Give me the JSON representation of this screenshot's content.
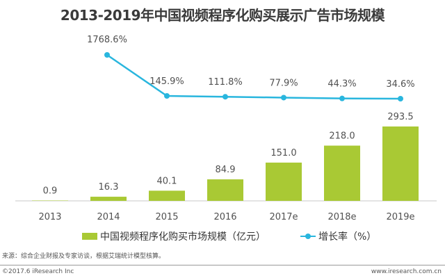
{
  "chart_data": {
    "type": "bar",
    "title": "2013-2019年中国视频程序化购买展示广告市场规模",
    "categories": [
      "2013",
      "2014",
      "2015",
      "2016",
      "2017e",
      "2018e",
      "2019e"
    ],
    "series": [
      {
        "name": "中国视频程序化购买市场规模（亿元）",
        "type": "bar",
        "values": [
          0.9,
          16.3,
          40.1,
          84.9,
          151.0,
          218.0,
          293.5
        ],
        "labels": [
          "0.9",
          "16.3",
          "40.1",
          "84.9",
          "151.0",
          "218.0",
          "293.5"
        ],
        "color": "#a9c934"
      },
      {
        "name": "增长率（%）",
        "type": "line",
        "values": [
          null,
          1768.6,
          145.9,
          111.8,
          77.9,
          44.3,
          34.6
        ],
        "labels": [
          "",
          "1768.6%",
          "145.9%",
          "111.8%",
          "77.9%",
          "44.3%",
          "34.6%"
        ],
        "color": "#29b6de"
      }
    ],
    "xlabel": "",
    "ylabel": "",
    "grid": false,
    "legend": "bottom"
  },
  "legend": {
    "bar_label": "中国视频程序化购买市场规模（亿元）",
    "line_label": "增长率（%）"
  },
  "footer": {
    "source": "来源：综合企业财报及专家访谈，根据艾瑞统计模型核算。",
    "copyright": "©2017.6 iResearch Inc",
    "website": "www.iresearch.com.cn"
  }
}
